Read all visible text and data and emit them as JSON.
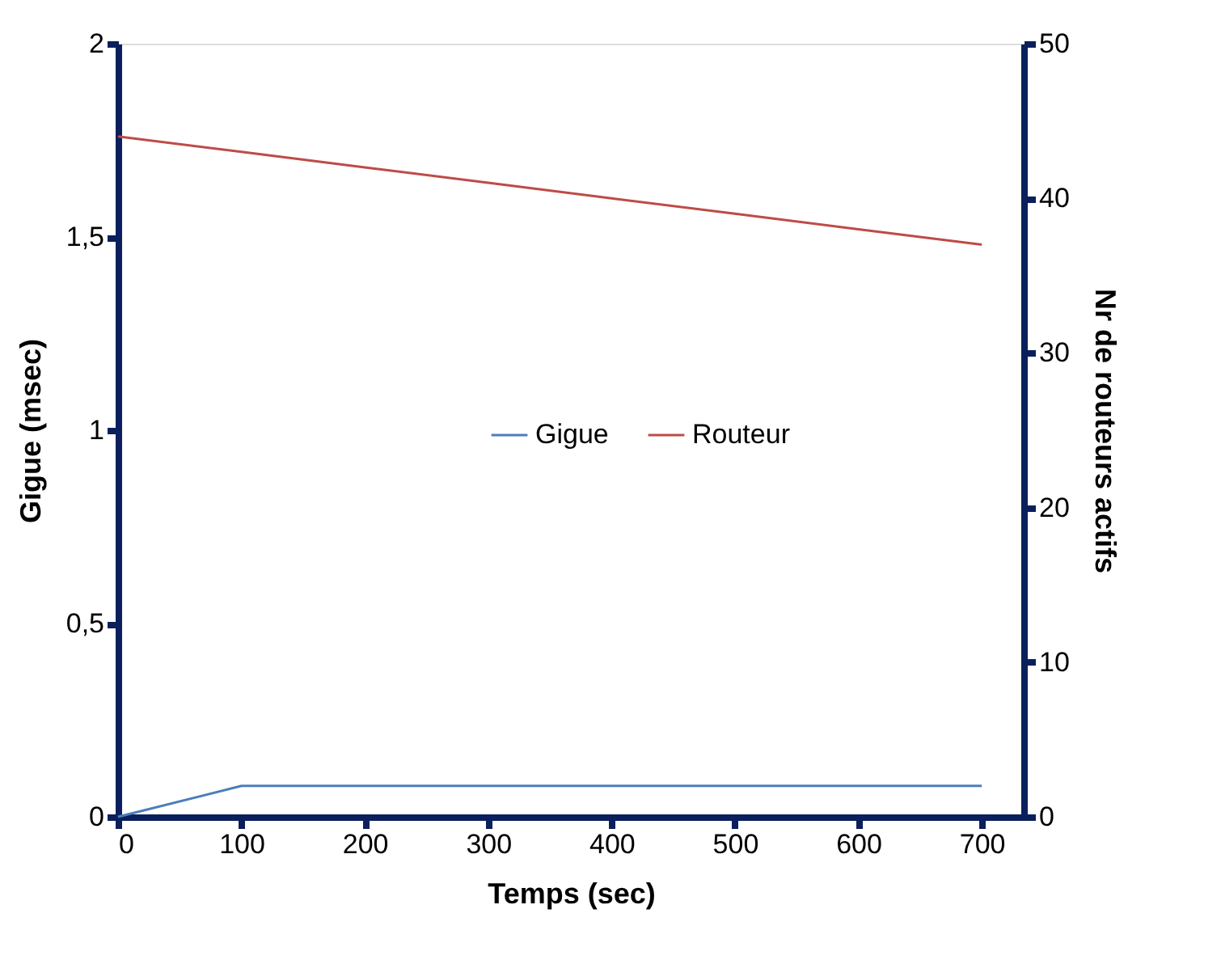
{
  "chart_data": {
    "type": "line",
    "xlabel": "Temps (sec)",
    "ylabel": "Gigue (msec)",
    "y2label": "Nr de  routeurs actifs",
    "x": [
      0,
      100,
      200,
      300,
      400,
      500,
      600,
      700
    ],
    "series": [
      {
        "name": "Gigue",
        "color": "#4a7ebb",
        "values": [
          0,
          0.08,
          0.08,
          0.08,
          0.08,
          0.08,
          0.08,
          0.08
        ]
      },
      {
        "name": "Routeur",
        "color": "#be4b48",
        "axis": "y2",
        "values": [
          44,
          43,
          42,
          41,
          40,
          39,
          38,
          37
        ]
      }
    ],
    "xlim": [
      0,
      734
    ],
    "xticks": [
      0,
      100,
      200,
      300,
      400,
      500,
      600,
      700
    ],
    "ylim": [
      0,
      2
    ],
    "yticks": [
      0,
      {
        "value": 0.5,
        "label": "0,5"
      },
      1,
      {
        "value": 1.5,
        "label": "1,5"
      },
      2
    ],
    "y2lim": [
      0,
      50
    ],
    "y2ticks": [
      0,
      10,
      20,
      30,
      40,
      50
    ],
    "grid": false,
    "legend": "center",
    "marker": "none",
    "line_style": "solid"
  }
}
